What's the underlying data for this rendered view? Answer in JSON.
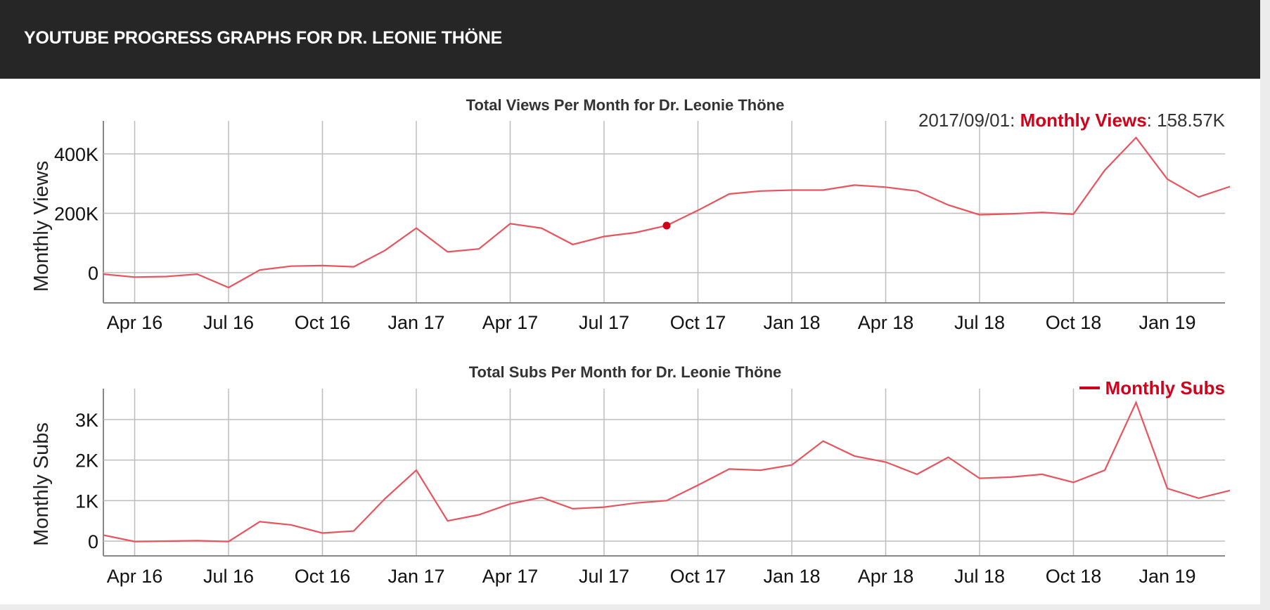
{
  "header": {
    "title": "YOUTUBE PROGRESS GRAPHS FOR DR. LEONIE THÖNE"
  },
  "colors": {
    "series": "#e8545e",
    "highlight": "#d0021b",
    "grid": "#bdbdbd",
    "header_bg": "#262626"
  },
  "x_tick_labels": [
    "Apr 16",
    "Jul 16",
    "Oct 16",
    "Jan 17",
    "Apr 17",
    "Jul 17",
    "Oct 17",
    "Jan 18",
    "Apr 18",
    "Jul 18",
    "Oct 18",
    "Jan 19"
  ],
  "views_chart": {
    "tooltip": {
      "date": "2017/09/01",
      "series": "Monthly Views",
      "value": "158.57K"
    }
  },
  "chart_data": [
    {
      "type": "line",
      "title": "Total Views Per Month for Dr. Leonie Thöne",
      "xlabel": "",
      "ylabel": "Monthly Views",
      "ylim": [
        -100000,
        500000
      ],
      "yticks": [
        0,
        200000,
        400000
      ],
      "ytick_labels": [
        "0",
        "200K",
        "400K"
      ],
      "x": [
        "2016-03-01",
        "2016-04-01",
        "2016-05-01",
        "2016-06-01",
        "2016-07-01",
        "2016-08-01",
        "2016-09-01",
        "2016-10-01",
        "2016-11-01",
        "2016-12-01",
        "2017-01-01",
        "2017-02-01",
        "2017-03-01",
        "2017-04-01",
        "2017-05-01",
        "2017-06-01",
        "2017-07-01",
        "2017-08-01",
        "2017-09-01",
        "2017-10-01",
        "2017-11-01",
        "2017-12-01",
        "2018-01-01",
        "2018-02-01",
        "2018-03-01",
        "2018-04-01",
        "2018-05-01",
        "2018-06-01",
        "2018-07-01",
        "2018-08-01",
        "2018-09-01",
        "2018-10-01",
        "2018-11-01",
        "2018-12-01",
        "2019-01-01",
        "2019-02-01",
        "2019-03-01"
      ],
      "series": [
        {
          "name": "Monthly Views",
          "values": [
            -5000,
            -15000,
            -13000,
            -5000,
            -50000,
            9000,
            22000,
            24000,
            20000,
            75000,
            150000,
            70000,
            80000,
            165000,
            150000,
            95000,
            122000,
            135000,
            158570,
            210000,
            265000,
            275000,
            278000,
            278000,
            295000,
            288000,
            275000,
            228000,
            195000,
            198000,
            203000,
            197000,
            345000,
            455000,
            315000,
            255000,
            290000
          ]
        }
      ],
      "highlight": {
        "x": "2017-09-01",
        "y": 158570
      }
    },
    {
      "type": "line",
      "title": "Total Subs Per Month for Dr. Leonie Thöne",
      "xlabel": "",
      "ylabel": "Monthly Subs",
      "ylim": [
        -350,
        3750
      ],
      "yticks": [
        0,
        1000,
        2000,
        3000
      ],
      "ytick_labels": [
        "0",
        "1K",
        "2K",
        "3K"
      ],
      "legend": "top-right",
      "x": [
        "2016-03-01",
        "2016-04-01",
        "2016-05-01",
        "2016-06-01",
        "2016-07-01",
        "2016-08-01",
        "2016-09-01",
        "2016-10-01",
        "2016-11-01",
        "2016-12-01",
        "2017-01-01",
        "2017-02-01",
        "2017-03-01",
        "2017-04-01",
        "2017-05-01",
        "2017-06-01",
        "2017-07-01",
        "2017-08-01",
        "2017-09-01",
        "2017-10-01",
        "2017-11-01",
        "2017-12-01",
        "2018-01-01",
        "2018-02-01",
        "2018-03-01",
        "2018-04-01",
        "2018-05-01",
        "2018-06-01",
        "2018-07-01",
        "2018-08-01",
        "2018-09-01",
        "2018-10-01",
        "2018-11-01",
        "2018-12-01",
        "2019-01-01",
        "2019-02-01",
        "2019-03-01"
      ],
      "series": [
        {
          "name": "Monthly Subs",
          "values": [
            150,
            -10,
            0,
            10,
            -10,
            480,
            400,
            200,
            250,
            1050,
            1750,
            500,
            650,
            920,
            1080,
            800,
            840,
            940,
            1000,
            1380,
            1780,
            1750,
            1880,
            2470,
            2100,
            1950,
            1650,
            2070,
            1550,
            1580,
            1650,
            1450,
            1750,
            3420,
            1300,
            1060,
            1250
          ]
        }
      ]
    }
  ]
}
